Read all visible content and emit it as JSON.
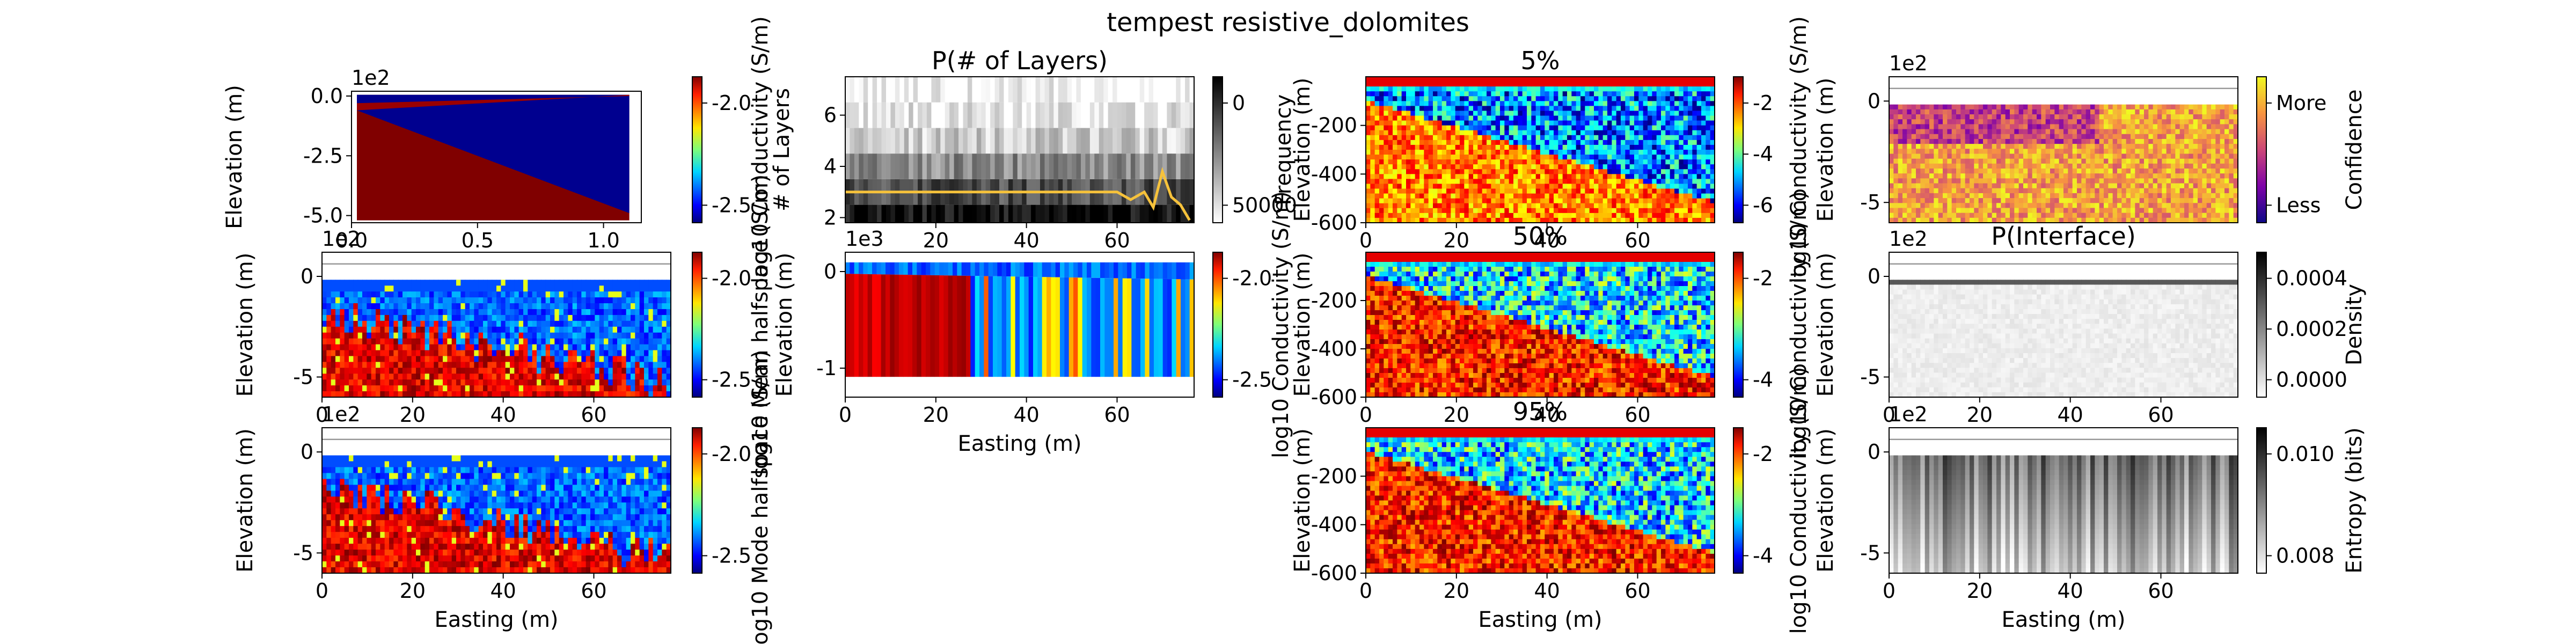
{
  "figure": {
    "title": "tempest resistive_dolomites"
  },
  "chart_data": [
    {
      "id": "p1",
      "type": "heatmap",
      "title": "",
      "xlabel": "",
      "ylabel": "Elevation (m)",
      "offset": "1e2",
      "xticks": [
        "0.0",
        "0.5",
        "1.0"
      ],
      "yticks": [
        "0.0",
        "-2.5",
        "-5.0"
      ],
      "xlim": [
        0,
        1.15
      ],
      "ylim": [
        -5.3,
        0.2
      ],
      "colorbar": {
        "label": "log10 Conductivity (S/m)",
        "ticks": [
          "-2.0",
          "-2.5"
        ],
        "cmap": "jet"
      },
      "note": "Synthetic two-layer model: resistive wedge (blue) over conductive base (dark red)"
    },
    {
      "id": "p2",
      "type": "heatmap",
      "title": "P(# of Layers)",
      "xlabel": "",
      "ylabel": "# of Layers",
      "xticks": [
        "20",
        "40",
        "60"
      ],
      "yticks": [
        "2",
        "4",
        "6"
      ],
      "xlim": [
        0,
        77
      ],
      "ylim": [
        1.8,
        7.5
      ],
      "colorbar": {
        "label": "Frequency",
        "ticks": [
          "0",
          "50000"
        ],
        "cmap": "gray_r"
      },
      "overlay_line": {
        "color": "#f6c23b",
        "x": [
          0,
          10,
          20,
          30,
          40,
          50,
          60,
          63,
          66,
          68,
          70,
          72,
          74,
          76
        ],
        "y": [
          3,
          3,
          3,
          3,
          3,
          3,
          3,
          2.7,
          3.0,
          2.4,
          3.8,
          2.8,
          2.5,
          1.9
        ]
      }
    },
    {
      "id": "p3",
      "type": "heatmap",
      "title": "5%",
      "xlabel": "",
      "ylabel": "Elevation (m)",
      "xticks": [
        "0",
        "20",
        "40",
        "60"
      ],
      "yticks": [
        "-200",
        "-400",
        "-600"
      ],
      "xlim": [
        0,
        77
      ],
      "ylim": [
        -600,
        0
      ],
      "colorbar": {
        "label": "log10 Conductivity (S/m)",
        "ticks": [
          "-2",
          "-4",
          "-6"
        ],
        "cmap": "jet"
      }
    },
    {
      "id": "p4",
      "type": "heatmap",
      "title": "",
      "xlabel": "",
      "ylabel": "Elevation (m)",
      "offset": "1e2",
      "xticks": [],
      "yticks": [
        "0",
        "-5"
      ],
      "xlim": [
        0,
        77
      ],
      "ylim": [
        -6,
        1.2
      ],
      "colorbar": {
        "label": "Confidence",
        "ticks": [
          "More",
          "Less"
        ],
        "cmap": "plasma"
      }
    },
    {
      "id": "p5",
      "type": "heatmap",
      "title": "",
      "xlabel": "",
      "ylabel": "Elevation (m)",
      "offset": "1e2",
      "xticks": [
        "0",
        "20",
        "40",
        "60"
      ],
      "yticks": [
        "0",
        "-5"
      ],
      "xlim": [
        0,
        77
      ],
      "ylim": [
        -6,
        1.2
      ],
      "colorbar": {
        "label": "log10 Mean halfspace (S/m)",
        "ticks": [
          "-2.0",
          "-2.5"
        ],
        "cmap": "jet"
      }
    },
    {
      "id": "p6",
      "type": "heatmap",
      "title": "",
      "xlabel": "Easting (m)",
      "ylabel": "Elevation (m)",
      "offset": "1e3",
      "xticks": [
        "0",
        "20",
        "40",
        "60"
      ],
      "yticks": [
        "0",
        "-1"
      ],
      "xlim": [
        0,
        77
      ],
      "ylim": [
        -1.3,
        0.2
      ],
      "colorbar": {
        "label": "log10 Conductivity (S/m)",
        "ticks": [
          "-2.0",
          "-2.5"
        ],
        "cmap": "jet"
      }
    },
    {
      "id": "p7",
      "type": "heatmap",
      "title": "50%",
      "xlabel": "",
      "ylabel": "Elevation (m)",
      "xticks": [
        "0",
        "20",
        "40",
        "60"
      ],
      "yticks": [
        "-200",
        "-400",
        "-600"
      ],
      "xlim": [
        0,
        77
      ],
      "ylim": [
        -600,
        0
      ],
      "colorbar": {
        "label": "log10 Conductivity (S/m)",
        "ticks": [
          "-2",
          "-4"
        ],
        "cmap": "jet"
      }
    },
    {
      "id": "p8",
      "type": "heatmap",
      "title": "P(Interface)",
      "xlabel": "",
      "ylabel": "Elevation (m)",
      "offset": "1e2",
      "xticks": [
        "0",
        "20",
        "40",
        "60"
      ],
      "yticks": [
        "0",
        "-5"
      ],
      "xlim": [
        0,
        77
      ],
      "ylim": [
        -6,
        1.2
      ],
      "colorbar": {
        "label": "Density",
        "ticks": [
          "0.0004",
          "0.0002",
          "0.0000"
        ],
        "cmap": "gray_r"
      }
    },
    {
      "id": "p9",
      "type": "heatmap",
      "title": "",
      "xlabel": "Easting (m)",
      "ylabel": "Elevation (m)",
      "offset": "1e2",
      "xticks": [
        "0",
        "20",
        "40",
        "60"
      ],
      "yticks": [
        "0",
        "-5"
      ],
      "xlim": [
        0,
        77
      ],
      "ylim": [
        -6,
        1.2
      ],
      "colorbar": {
        "label": "log10 Mode halfspace (S/m)",
        "ticks": [
          "-2.0",
          "-2.5"
        ],
        "cmap": "jet"
      }
    },
    {
      "id": "p10",
      "type": "heatmap",
      "title": "95%",
      "xlabel": "Easting (m)",
      "ylabel": "Elevation (m)",
      "xticks": [
        "0",
        "20",
        "40",
        "60"
      ],
      "yticks": [
        "-200",
        "-400",
        "-600"
      ],
      "xlim": [
        0,
        77
      ],
      "ylim": [
        -600,
        0
      ],
      "colorbar": {
        "label": "log10 Conductivity (S/m)",
        "ticks": [
          "-2",
          "-4"
        ],
        "cmap": "jet"
      }
    },
    {
      "id": "p11",
      "type": "heatmap",
      "title": "",
      "xlabel": "Easting (m)",
      "ylabel": "Elevation (m)",
      "offset": "1e2",
      "xticks": [
        "0",
        "20",
        "40",
        "60"
      ],
      "yticks": [
        "0",
        "-5"
      ],
      "xlim": [
        0,
        77
      ],
      "ylim": [
        -6,
        1.2
      ],
      "colorbar": {
        "label": "Entropy (bits)",
        "ticks": [
          "0.010",
          "0.008"
        ],
        "cmap": "gray"
      }
    }
  ]
}
